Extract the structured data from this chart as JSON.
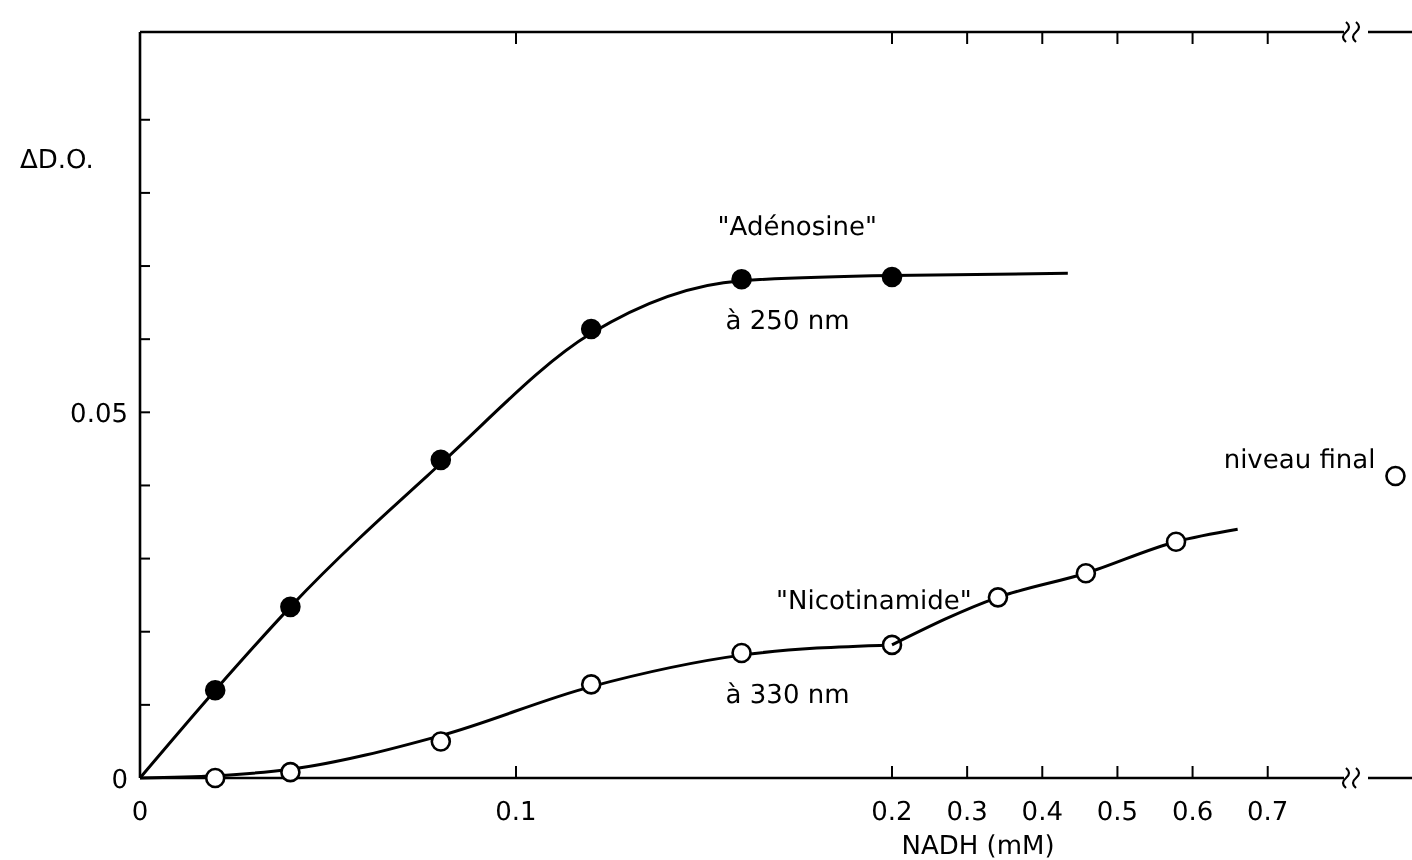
{
  "chart_data": [
    {
      "type": "scatter",
      "ylabel": "ΔD.O.",
      "xlim": [
        0,
        0.2
      ],
      "xticks": [
        0,
        0.1,
        0.2
      ],
      "ylim": [
        0,
        0.102
      ],
      "yticks": [
        0,
        {
          "value": 0.01,
          "label": null
        },
        {
          "value": 0.02,
          "label": null
        },
        {
          "value": 0.03,
          "label": null
        },
        {
          "value": 0.04,
          "label": null
        },
        0.05,
        {
          "value": 0.06,
          "label": null
        },
        {
          "value": 0.07,
          "label": null
        },
        {
          "value": 0.08,
          "label": null
        },
        {
          "value": 0.09,
          "label": null
        }
      ],
      "marker": "circle",
      "grid": false,
      "legend": false,
      "series": [
        {
          "type": "line",
          "color": "#000000",
          "marker": "none",
          "x": [
            0,
            0.02,
            0.04,
            0.08,
            0.12,
            0.16,
            0.2
          ],
          "values": [
            0,
            0.012,
            0.0234,
            0.043,
            0.0608,
            0.068,
            0.0687
          ]
        },
        {
          "type": "line",
          "color": "#000000",
          "marker": "none",
          "x": [
            0,
            0.02,
            0.04,
            0.08,
            0.12,
            0.16,
            0.2
          ],
          "values": [
            0,
            0.0003,
            0.0012,
            0.0058,
            0.0125,
            0.0168,
            0.0182
          ]
        },
        {
          "name": "\"Adénosine\"",
          "color": "#000000",
          "x": [
            0.02,
            0.04,
            0.08,
            0.12,
            0.16,
            0.2
          ],
          "values": [
            0.012,
            0.0234,
            0.0435,
            0.0614,
            0.0682,
            0.0685
          ]
        },
        {
          "name": "\"Nicotinamide\"",
          "color": "#ffffff",
          "x": [
            0.02,
            0.04,
            0.08,
            0.12,
            0.16,
            0.2
          ],
          "values": [
            0,
            0.0008,
            0.005,
            0.0128,
            0.0171,
            0.0182
          ]
        }
      ],
      "annotations": [
        {
          "text": "à 250 nm",
          "x": 0.16,
          "y": 0.0682
        },
        {
          "text": "à 330 nm",
          "x": 0.16,
          "y": 0.0171
        }
      ]
    },
    {
      "type": "scatter",
      "xlabel": "NADH (mM)",
      "xlim": [
        0.2,
        0.9
      ],
      "xticks": [
        0.3,
        0.4,
        0.5,
        0.6,
        0.7
      ],
      "ylim": [
        0,
        0.102
      ],
      "tick_labels": "x",
      "marker": "circle",
      "series": [
        {
          "type": "line",
          "color": "#000000",
          "marker": "none",
          "x": [
            0.2,
            0.434
          ],
          "values": [
            0.0687,
            0.069
          ]
        },
        {
          "type": "line",
          "color": "#000000",
          "marker": "none",
          "x": [
            0.2,
            0.341,
            0.458,
            0.578,
            0.66
          ],
          "values": [
            0.0182,
            0.0247,
            0.028,
            0.0323,
            0.034
          ]
        },
        {
          "color": "#ffffff",
          "x": [
            0.341,
            0.458,
            0.578
          ],
          "values": [
            0.0247,
            0.028,
            0.0323
          ]
        },
        {
          "name": "niveau final",
          "color": "#ffffff",
          "x": [
            0.87
          ],
          "values": [
            0.0413
          ]
        }
      ]
    }
  ]
}
